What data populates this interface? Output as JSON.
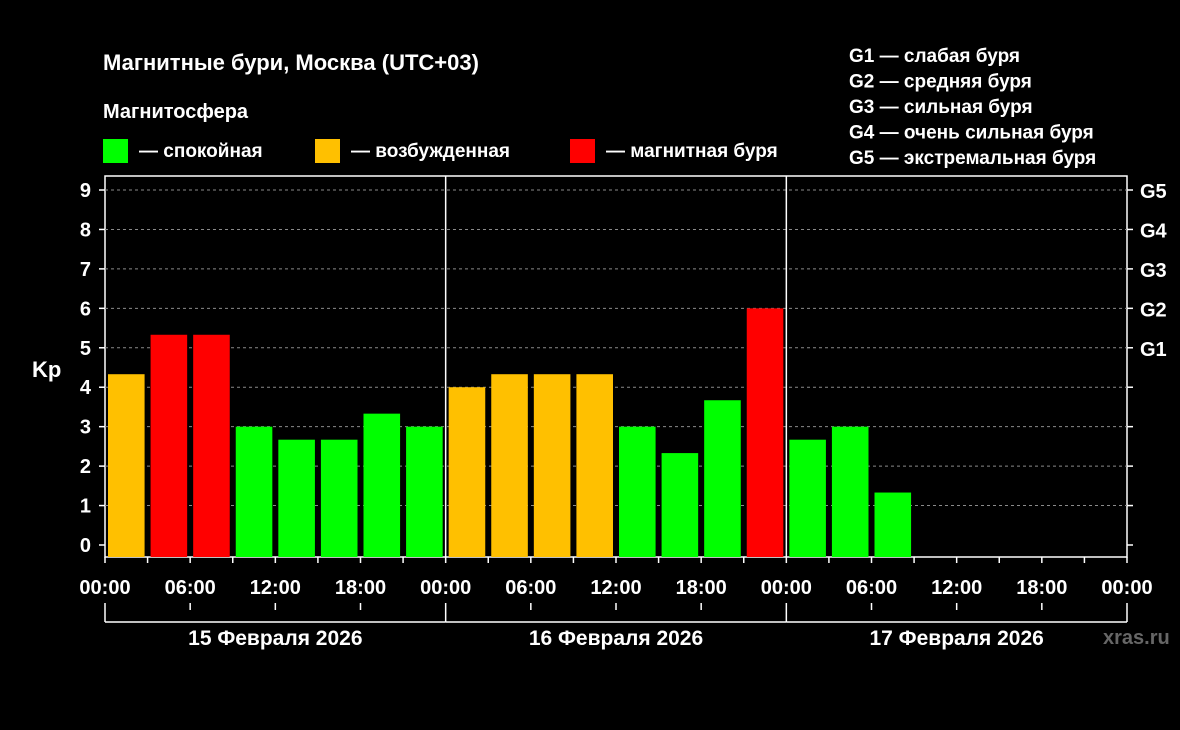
{
  "title": "Магнитные бури, Москва (UTC+03)",
  "magnetosphere_label": "Магнитосфера",
  "state_legend": [
    {
      "label": "— спокойная",
      "color": "#00ff00"
    },
    {
      "label": "— возбужденная",
      "color": "#ffc000"
    },
    {
      "label": "— магнитная буря",
      "color": "#ff0000"
    }
  ],
  "storm_legend": [
    "G1 — слабая буря",
    "G2 — средняя буря",
    "G3 — сильная буря",
    "G4 — очень сильная буря",
    "G5 — экстремальная буря"
  ],
  "watermark": "xras.ru",
  "chart_data": {
    "type": "bar",
    "ylabel": "Kp",
    "ylim": [
      0,
      9
    ],
    "yticks": [
      "0",
      "1",
      "2",
      "3",
      "4",
      "5",
      "6",
      "7",
      "8",
      "9"
    ],
    "right_ticks": [
      {
        "value": 5,
        "label": "G1"
      },
      {
        "value": 6,
        "label": "G2"
      },
      {
        "value": 7,
        "label": "G3"
      },
      {
        "value": 8,
        "label": "G4"
      },
      {
        "value": 9,
        "label": "G5"
      }
    ],
    "xtick_labels": [
      "00:00",
      "06:00",
      "12:00",
      "18:00",
      "00:00",
      "06:00",
      "12:00",
      "18:00",
      "00:00",
      "06:00",
      "12:00",
      "18:00",
      "00:00"
    ],
    "days": [
      "15 Февраля 2026",
      "16 Февраля 2026",
      "17 Февраля 2026"
    ],
    "interval_hours": 3,
    "values": [
      4.33,
      5.33,
      5.33,
      3.0,
      2.67,
      2.67,
      3.33,
      3.0,
      4.0,
      4.33,
      4.33,
      4.33,
      3.0,
      2.33,
      3.67,
      6.0,
      2.67,
      3.0,
      1.33
    ],
    "colors": [
      "#ffc000",
      "#ff0000",
      "#ff0000",
      "#00ff00",
      "#00ff00",
      "#00ff00",
      "#00ff00",
      "#00ff00",
      "#ffc000",
      "#ffc000",
      "#ffc000",
      "#ffc000",
      "#00ff00",
      "#00ff00",
      "#00ff00",
      "#ff0000",
      "#00ff00",
      "#00ff00",
      "#00ff00"
    ],
    "grid": "dashed horizontal"
  }
}
